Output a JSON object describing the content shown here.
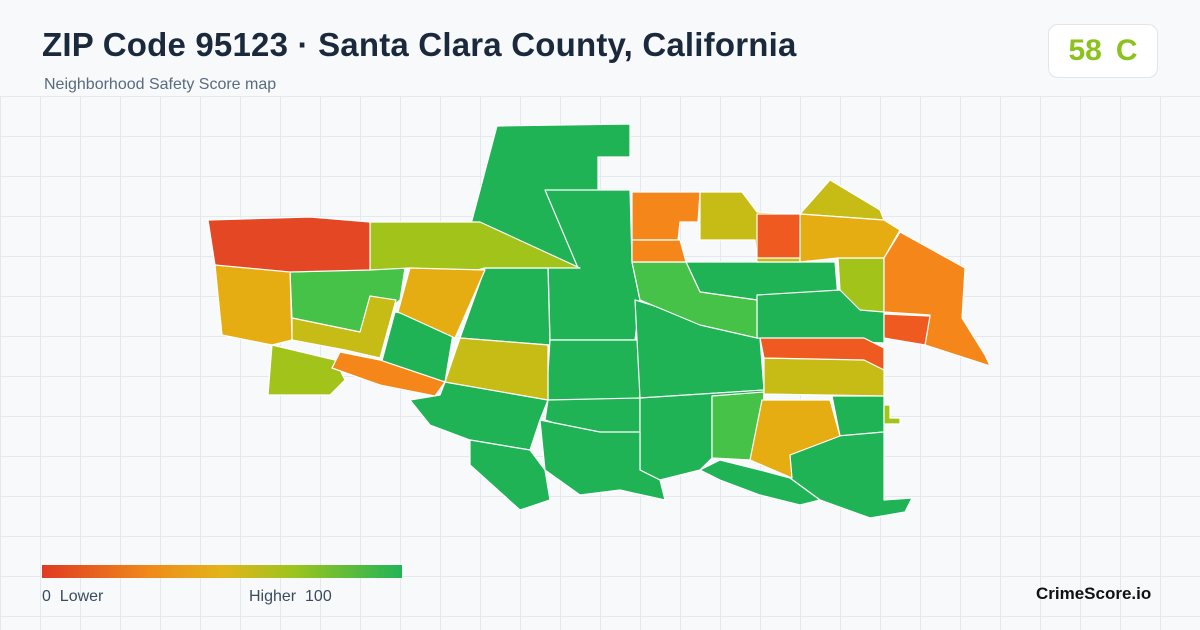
{
  "header": {
    "title": "ZIP Code 95123 · Santa Clara County, California",
    "subtitle": "Neighborhood Safety Score map"
  },
  "score": {
    "value": "58",
    "grade": "C",
    "color": "#8cc21d"
  },
  "legend": {
    "low_value": "0",
    "low_label": "Lower",
    "high_label": "Higher",
    "high_value": "100",
    "colors": [
      "#e03a22",
      "#f08a1a",
      "#e3b419",
      "#9cc41e",
      "#22b456"
    ]
  },
  "brand": "CrimeScore.io",
  "map": {
    "region_colors": {
      "green": "#1fb356",
      "light_green": "#45c247",
      "yellow_green": "#a2c41a",
      "olive": "#c7bc16",
      "yellow_orange": "#e6ad13",
      "orange": "#f5861a",
      "red_orange": "#ee5a20",
      "red": "#e34724"
    }
  }
}
